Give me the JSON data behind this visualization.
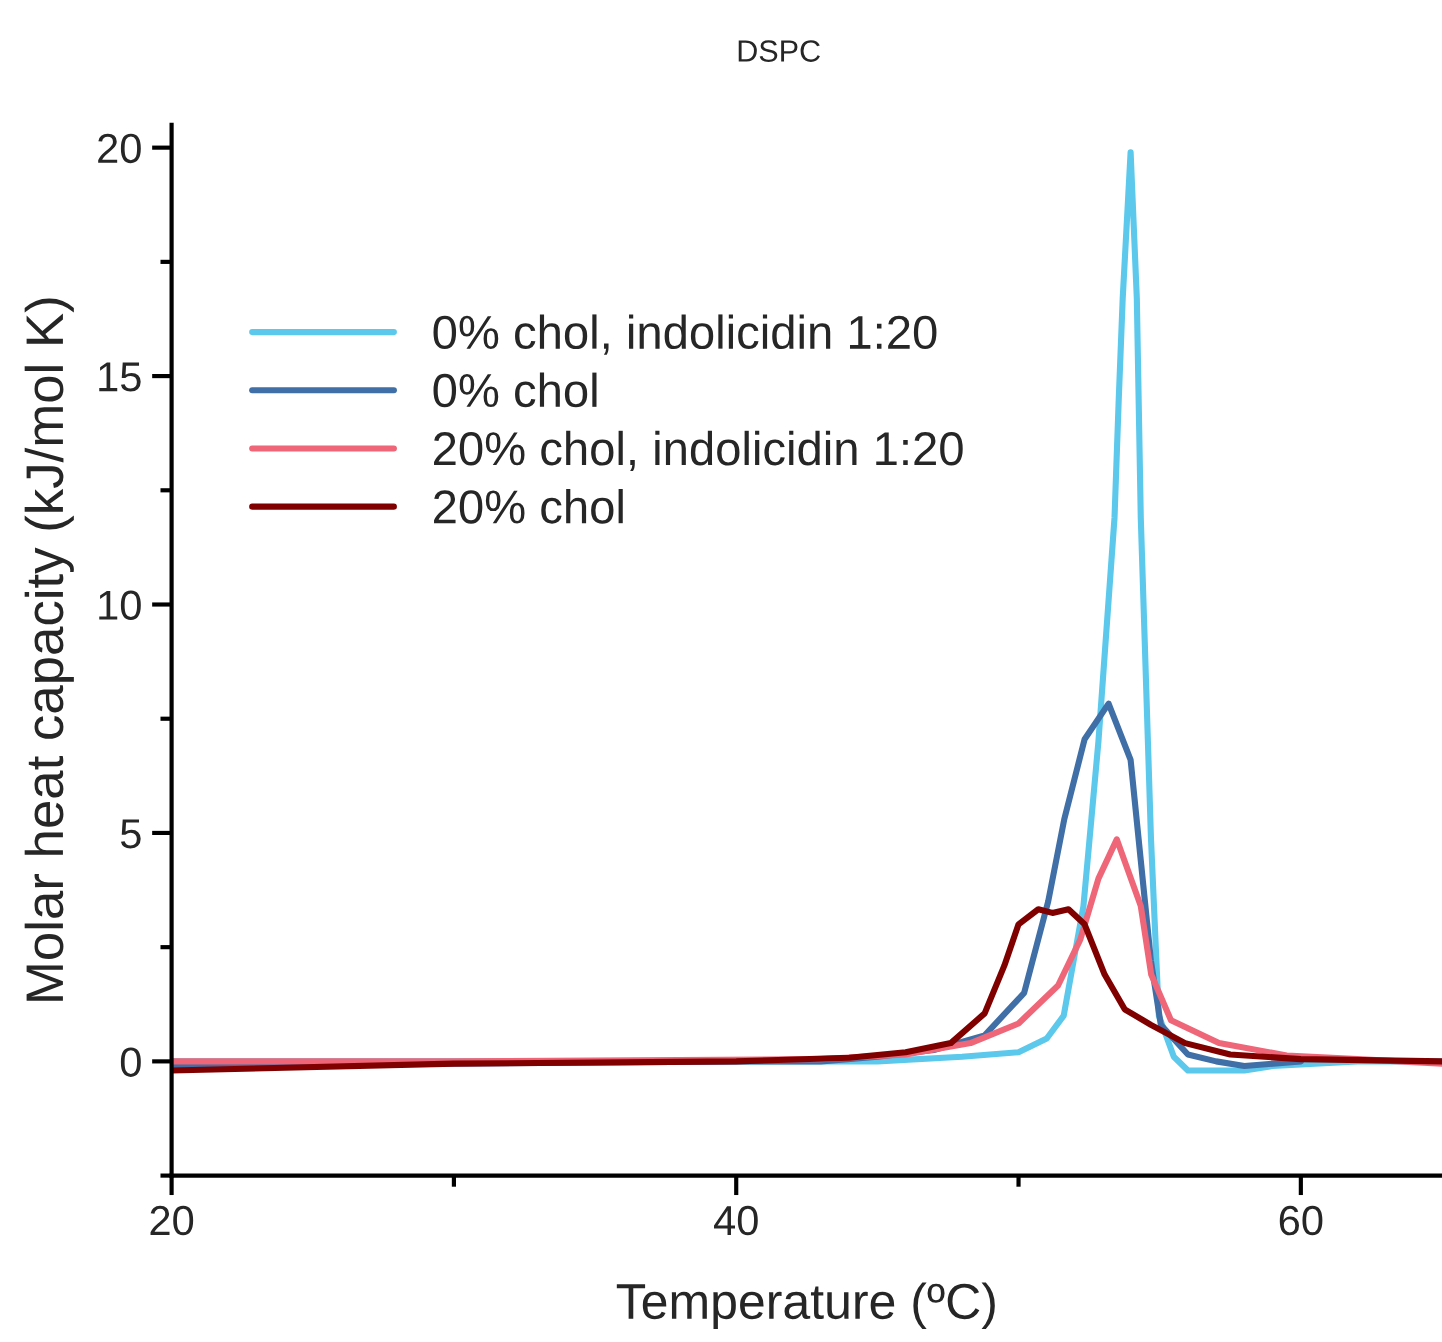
{
  "chart_data": {
    "type": "line",
    "title": "DSPC",
    "xlabel": "Temperature (ºC)",
    "ylabel": "Molar heat capacity (kJ/mol K)",
    "xlim": [
      20,
      65
    ],
    "ylim": [
      -2.5,
      20.5
    ],
    "xticks": [
      20,
      {
        "value": 30,
        "label": null
      },
      40,
      {
        "value": 50,
        "label": null
      },
      60
    ],
    "yticks": [
      {
        "value": -2.5,
        "label": null
      },
      0,
      {
        "value": 2.5,
        "label": null
      },
      5,
      {
        "value": 7.5,
        "label": null
      },
      10,
      {
        "value": 12.5,
        "label": null
      },
      15,
      {
        "value": 17.5,
        "label": null
      },
      20
    ],
    "grid": false,
    "legend": "top left",
    "marker": "none",
    "line_style": "solid",
    "series": [
      {
        "name": "0% chol, indolicidin 1:20",
        "color": "#5bc8ec",
        "x": [
          20,
          30,
          40,
          45,
          48,
          50,
          51,
          51.6,
          52.3,
          52.83,
          53.4,
          53.55,
          53.69,
          53.97,
          54.19,
          54.33,
          54.47,
          54.69,
          54.97,
          55.5,
          56,
          58,
          59,
          62,
          65
        ],
        "values": [
          0,
          0,
          0,
          0,
          0.1,
          0.2,
          0.5,
          1.0,
          3.4,
          7,
          11.9,
          14.5,
          16.7,
          19.9,
          16.7,
          11.9,
          9.2,
          4.9,
          1,
          0.1,
          -0.2,
          -0.2,
          -0.1,
          0,
          0
        ]
      },
      {
        "name": "0% chol",
        "color": "#3f6fa6",
        "x": [
          20,
          40,
          43,
          45,
          47,
          48.8,
          50.2,
          51.05,
          51.62,
          52.34,
          53.19,
          53.97,
          54.33,
          54.69,
          55.04,
          56,
          57,
          58,
          60
        ],
        "values": [
          -0.1,
          0,
          0,
          0.1,
          0.25,
          0.57,
          1.5,
          3.5,
          5.3,
          7.05,
          7.83,
          6.6,
          4.4,
          2.2,
          0.8,
          0.15,
          0,
          -0.1,
          0
        ]
      },
      {
        "name": "20% chol, indolicidin 1:20",
        "color": "#ee6677",
        "x": [
          20,
          30,
          43,
          46,
          48.3,
          50,
          51.4,
          52.19,
          52.83,
          53.48,
          54.33,
          54.7,
          55.4,
          57.1,
          59.5,
          62,
          65
        ],
        "values": [
          0,
          0,
          0.05,
          0.15,
          0.4,
          0.83,
          1.66,
          2.67,
          4.0,
          4.86,
          3.4,
          1.9,
          0.9,
          0.4,
          0.13,
          0.05,
          -0.05
        ]
      },
      {
        "name": "20% chol",
        "color": "#800000",
        "x": [
          20,
          30,
          40,
          44,
          46,
          47.6,
          48.8,
          49.5,
          50,
          50.7,
          51.2,
          51.77,
          52.34,
          53.05,
          53.76,
          54.69,
          55.9,
          57.5,
          60,
          65
        ],
        "values": [
          -0.2,
          -0.05,
          0,
          0.08,
          0.2,
          0.4,
          1.05,
          2.1,
          3.0,
          3.33,
          3.25,
          3.33,
          3.0,
          1.9,
          1.14,
          0.8,
          0.4,
          0.15,
          0.05,
          0
        ]
      }
    ]
  }
}
